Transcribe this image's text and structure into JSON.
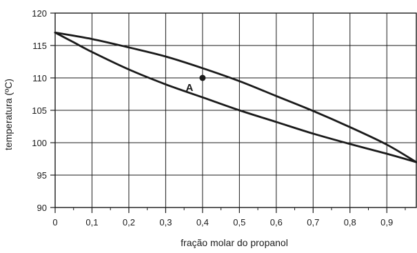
{
  "chart_data": {
    "type": "line",
    "title": "",
    "xlabel": "fração molar do propanol",
    "ylabel": "temperatura (ºC)",
    "xlim": [
      0,
      0.98
    ],
    "ylim": [
      90,
      120
    ],
    "x_ticks": [
      "0",
      "0,1",
      "0,2",
      "0,3",
      "0,4",
      "0,5",
      "0,6",
      "0,7",
      "0,8",
      "0,9"
    ],
    "x_tick_values": [
      0,
      0.1,
      0.2,
      0.3,
      0.4,
      0.5,
      0.6,
      0.7,
      0.8,
      0.9
    ],
    "y_ticks": [
      "90",
      "95",
      "100",
      "105",
      "110",
      "115",
      "120"
    ],
    "y_tick_values": [
      90,
      95,
      100,
      105,
      110,
      115,
      120
    ],
    "grid": true,
    "series": [
      {
        "x": [
          0,
          0.1,
          0.2,
          0.3,
          0.4,
          0.5,
          0.6,
          0.7,
          0.8,
          0.9,
          0.98
        ],
        "y": [
          117,
          116,
          114.7,
          113.3,
          111.5,
          109.5,
          107.2,
          104.9,
          102.4,
          99.7,
          97
        ]
      },
      {
        "x": [
          0,
          0.05,
          0.1,
          0.2,
          0.3,
          0.4,
          0.5,
          0.6,
          0.7,
          0.8,
          0.9,
          0.98
        ],
        "y": [
          117,
          115.5,
          114,
          111.3,
          109,
          107,
          105,
          103.2,
          101.4,
          99.8,
          98.3,
          97
        ]
      }
    ],
    "annotations": [
      {
        "label": "A",
        "x": 0.4,
        "y": 110
      }
    ],
    "line_color": "#1a1a1a",
    "grid_color": "#1a1a1a"
  }
}
